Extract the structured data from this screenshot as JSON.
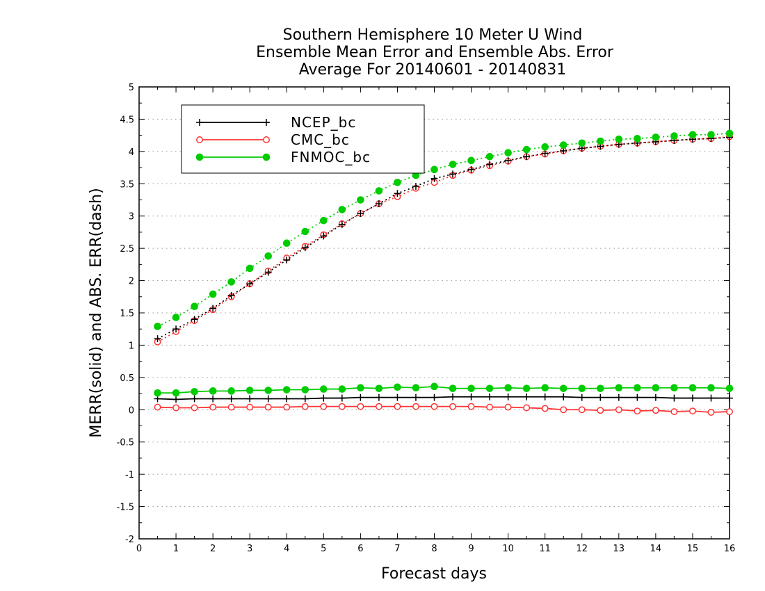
{
  "chart_data": {
    "type": "line",
    "title_lines": [
      "Southern Hemisphere 10 Meter U Wind",
      "Ensemble Mean Error and Ensemble Abs. Error",
      "Average For 20140601 - 20140831"
    ],
    "xlabel": "Forecast days",
    "ylabel": "MERR(solid) and ABS. ERR(dash)",
    "xlim": [
      0,
      16
    ],
    "ylim": [
      -2,
      5
    ],
    "xticks": [
      "0",
      "1",
      "2",
      "3",
      "4",
      "5",
      "6",
      "7",
      "8",
      "9",
      "10",
      "11",
      "12",
      "13",
      "14",
      "15",
      "16"
    ],
    "yticks": [
      "-2",
      "-1.5",
      "-1",
      "-0.5",
      "0",
      "0.5",
      "1",
      "1.5",
      "2",
      "2.5",
      "3",
      "3.5",
      "4",
      "4.5",
      "5"
    ],
    "grid": "horizontal-dotted",
    "legend_position": "top-left",
    "x": [
      0.5,
      1,
      1.5,
      2,
      2.5,
      3,
      3.5,
      4,
      4.5,
      5,
      5.5,
      6,
      6.5,
      7,
      7.5,
      8,
      8.5,
      9,
      9.5,
      10,
      10.5,
      11,
      11.5,
      12,
      12.5,
      13,
      13.5,
      14,
      14.5,
      15,
      15.5,
      16
    ],
    "series": [
      {
        "name": "NCEP_bc",
        "color": "#000000",
        "marker": "plus",
        "merr": [
          0.17,
          0.16,
          0.17,
          0.17,
          0.17,
          0.17,
          0.17,
          0.17,
          0.17,
          0.18,
          0.18,
          0.19,
          0.19,
          0.19,
          0.19,
          0.19,
          0.2,
          0.2,
          0.2,
          0.2,
          0.2,
          0.2,
          0.2,
          0.19,
          0.19,
          0.19,
          0.19,
          0.19,
          0.18,
          0.18,
          0.18,
          0.18
        ],
        "abs_err": [
          1.1,
          1.25,
          1.4,
          1.57,
          1.77,
          1.95,
          2.13,
          2.32,
          2.51,
          2.69,
          2.87,
          3.04,
          3.19,
          3.35,
          3.46,
          3.58,
          3.65,
          3.72,
          3.8,
          3.86,
          3.92,
          3.97,
          4.01,
          4.05,
          4.08,
          4.11,
          4.13,
          4.15,
          4.17,
          4.19,
          4.2,
          4.22
        ]
      },
      {
        "name": "CMC_bc",
        "color": "#ff3333",
        "marker": "open-circle",
        "merr": [
          0.04,
          0.03,
          0.03,
          0.04,
          0.04,
          0.04,
          0.04,
          0.04,
          0.05,
          0.05,
          0.05,
          0.05,
          0.05,
          0.05,
          0.05,
          0.05,
          0.05,
          0.05,
          0.04,
          0.04,
          0.03,
          0.02,
          0.0,
          0.0,
          -0.01,
          0.0,
          -0.02,
          -0.01,
          -0.03,
          -0.02,
          -0.04,
          -0.03
        ],
        "abs_err": [
          1.05,
          1.21,
          1.38,
          1.55,
          1.75,
          1.95,
          2.15,
          2.35,
          2.53,
          2.71,
          2.88,
          3.04,
          3.19,
          3.3,
          3.43,
          3.52,
          3.63,
          3.71,
          3.78,
          3.85,
          3.92,
          3.96,
          4.01,
          4.05,
          4.08,
          4.11,
          4.13,
          4.15,
          4.17,
          4.19,
          4.2,
          4.23
        ]
      },
      {
        "name": "FNMOC_bc",
        "color": "#00cc00",
        "marker": "filled-circle",
        "merr": [
          0.26,
          0.26,
          0.28,
          0.29,
          0.29,
          0.3,
          0.3,
          0.31,
          0.31,
          0.32,
          0.32,
          0.34,
          0.33,
          0.35,
          0.34,
          0.36,
          0.33,
          0.33,
          0.33,
          0.34,
          0.33,
          0.34,
          0.33,
          0.33,
          0.33,
          0.34,
          0.34,
          0.34,
          0.34,
          0.34,
          0.34,
          0.33
        ],
        "abs_err": [
          1.29,
          1.43,
          1.6,
          1.79,
          1.98,
          2.19,
          2.38,
          2.58,
          2.76,
          2.93,
          3.1,
          3.25,
          3.39,
          3.52,
          3.63,
          3.72,
          3.8,
          3.86,
          3.92,
          3.98,
          4.03,
          4.07,
          4.1,
          4.13,
          4.16,
          4.19,
          4.2,
          4.22,
          4.24,
          4.26,
          4.26,
          4.28
        ]
      }
    ]
  }
}
